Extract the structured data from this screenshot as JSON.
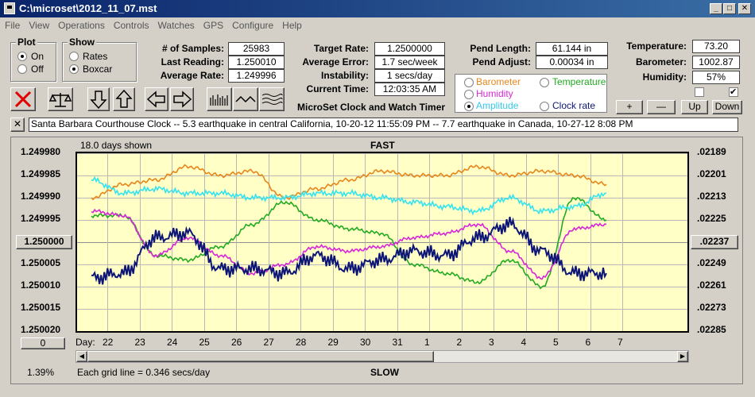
{
  "window": {
    "title": "C:\\microset\\2012_11_07.mst"
  },
  "menu": [
    "File",
    "View",
    "Operations",
    "Controls",
    "Watches",
    "GPS",
    "Configure",
    "Help"
  ],
  "plot_group": {
    "label": "Plot",
    "on": "On",
    "off": "Off",
    "selected": "On"
  },
  "show_group": {
    "label": "Show",
    "rates": "Rates",
    "boxcar": "Boxcar",
    "selected": "Boxcar"
  },
  "stats": {
    "samples_label": "# of Samples:",
    "samples": "25983",
    "last_reading_label": "Last Reading:",
    "last_reading": "1.250010",
    "average_rate_label": "Average Rate:",
    "average_rate": "1.249996",
    "target_rate_label": "Target Rate:",
    "target_rate": "1.2500000",
    "average_error_label": "Average Error:",
    "average_error": "1.7 sec/week",
    "instability_label": "Instability:",
    "instability": "1 secs/day",
    "current_time_label": "Current Time:",
    "current_time": "12:03:35 AM",
    "pend_length_label": "Pend Length:",
    "pend_length": "61.144 in",
    "pend_adjust_label": "Pend Adjust:",
    "pend_adjust": "0.00034 in",
    "temperature_label": "Temperature:",
    "temperature": "73.20",
    "barometer_label": "Barometer:",
    "barometer": "1002.87",
    "humidity_label": "Humidity:",
    "humidity": "57%"
  },
  "legend": {
    "barometer": "Barometer",
    "temperature": "Temperature",
    "humidity": "Humidity",
    "amplitude": "Amplitude",
    "clock_rate": "Clock rate",
    "selected": "Amplitude"
  },
  "colors": {
    "barometer": "#e8861c",
    "temperature": "#22aa22",
    "humidity": "#d826d8",
    "amplitude": "#33e4f0",
    "clock_rate": "#0d1677",
    "plot_bg": "#ffffc6"
  },
  "timer_title": "MicroSet Clock and Watch Timer",
  "right_buttons": {
    "plus": "+",
    "minus": "—",
    "up": "Up",
    "down": "Down"
  },
  "toolbar_icons": [
    "delete-icon",
    "balance-icon",
    "arrow-down-icon",
    "arrow-up-icon",
    "arrow-left-icon",
    "arrow-right-icon",
    "bars-icon",
    "wave-icon",
    "multi-wave-icon"
  ],
  "notes": "Santa Barbara Courthouse Clock  --  5.3 earthquake in central California, 10-20-12 11:55:09 PM  --  7.7 earthquake in Canada, 10-27-12 8:08 PM",
  "chart": {
    "days_shown": "18.0 days shown",
    "fast_label": "FAST",
    "slow_label": "SLOW",
    "grid_note": "Each grid line = 0.346 secs/day",
    "percent": "1.39%",
    "center_left": "1.250000",
    "center_right": ".02237",
    "bottom_button": "0",
    "day_label": "Day:"
  },
  "chart_data": {
    "type": "line",
    "x_ticks": [
      "22",
      "23",
      "24",
      "25",
      "26",
      "27",
      "28",
      "29",
      "30",
      "31",
      "1",
      "2",
      "3",
      "4",
      "5",
      "6",
      "7"
    ],
    "y_left_ticks": [
      "1.249980",
      "1.249985",
      "1.249990",
      "1.249995",
      "1.250000",
      "1.250005",
      "1.250010",
      "1.250015",
      "1.250020"
    ],
    "y_right_ticks": [
      ".02189",
      ".02201",
      ".02213",
      ".02225",
      ".02237",
      ".02249",
      ".02261",
      ".02273",
      ".02285"
    ],
    "series": [
      {
        "name": "Barometer",
        "values": [
          1.24999,
          1.249987,
          1.249986,
          1.249983,
          1.249985,
          1.249984,
          1.24999,
          1.249988,
          1.249986,
          1.249984,
          1.249985,
          1.249985,
          1.249983,
          1.249985,
          1.249984,
          1.249985,
          1.249987
        ]
      },
      {
        "name": "Temperature",
        "values": [
          1.249994,
          1.249994,
          1.250003,
          1.250004,
          1.250001,
          1.249996,
          1.249991,
          1.249995,
          1.249997,
          1.249998,
          1.250005,
          1.250007,
          1.250009,
          1.250004,
          1.25001,
          1.24999,
          1.249995
        ]
      },
      {
        "name": "Humidity",
        "values": [
          1.249993,
          1.249994,
          1.250003,
          1.249999,
          1.250003,
          1.250007,
          1.250005,
          1.250001,
          1.250002,
          1.250001,
          1.249999,
          1.249998,
          1.249996,
          1.250002,
          1.250008,
          1.249997,
          1.249996
        ]
      },
      {
        "name": "Amplitude",
        "values": [
          1.249986,
          1.249989,
          1.249988,
          1.249989,
          1.249989,
          1.24999,
          1.24999,
          1.249989,
          1.249989,
          1.24999,
          1.249991,
          1.249992,
          1.249993,
          1.24999,
          1.249993,
          1.249992,
          1.249989
        ]
      },
      {
        "name": "Clock rate",
        "values": [
          1.250008,
          1.250007,
          1.249999,
          1.249998,
          1.250006,
          1.250006,
          1.250007,
          1.250003,
          1.250006,
          1.250004,
          1.250002,
          1.250003,
          1.249999,
          1.249996,
          1.250002,
          1.250007,
          1.250007
        ]
      }
    ]
  }
}
